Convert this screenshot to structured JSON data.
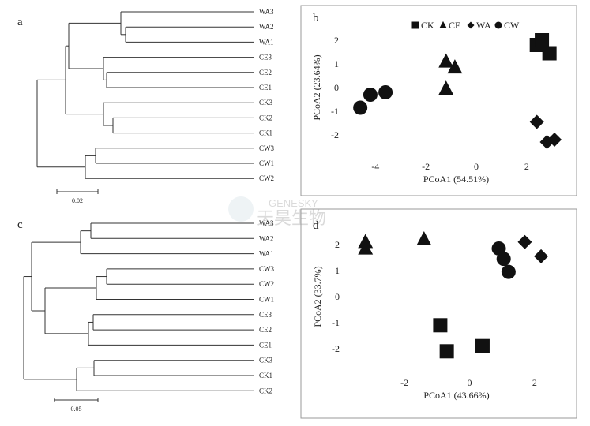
{
  "watermark": {
    "brand": "GENESKY",
    "chinese": "天昊生物"
  },
  "panels": {
    "a": {
      "label": "a",
      "scale": "0.02"
    },
    "b": {
      "label": "b"
    },
    "c": {
      "label": "c",
      "scale": "0.05"
    },
    "d": {
      "label": "d"
    }
  },
  "chart_data": [
    {
      "type": "dendrogram",
      "panel": "a",
      "leaves": [
        "WA3",
        "WA2",
        "WA1",
        "CE3",
        "CE2",
        "CE1",
        "CK3",
        "CK2",
        "CK1",
        "CW3",
        "CW1",
        "CW2"
      ],
      "scale_bar": "0.02"
    },
    {
      "type": "scatter",
      "panel": "b",
      "xlabel": "PCoA1 (54.51%)",
      "ylabel": "PCoA2 (23.64%)",
      "xlim": [
        -5.2,
        3.6
      ],
      "ylim": [
        -3,
        3
      ],
      "xticks": [
        -4,
        -2,
        0,
        2
      ],
      "yticks": [
        2,
        1,
        0,
        -1,
        -2
      ],
      "legend": {
        "position": "top"
      },
      "series": [
        {
          "name": "CK",
          "marker": "square",
          "points": [
            [
              2.4,
              1.8
            ],
            [
              2.6,
              2.0
            ],
            [
              2.9,
              1.45
            ]
          ]
        },
        {
          "name": "CE",
          "marker": "triangle",
          "points": [
            [
              -1.2,
              1.1
            ],
            [
              -0.85,
              0.85
            ],
            [
              -1.2,
              -0.05
            ]
          ]
        },
        {
          "name": "WA",
          "marker": "diamond",
          "points": [
            [
              2.4,
              -1.45
            ],
            [
              2.8,
              -2.3
            ],
            [
              3.1,
              -2.2
            ]
          ]
        },
        {
          "name": "CW",
          "marker": "circle",
          "points": [
            [
              -4.6,
              -0.85
            ],
            [
              -4.2,
              -0.3
            ],
            [
              -3.6,
              -0.2
            ]
          ]
        }
      ]
    },
    {
      "type": "dendrogram",
      "panel": "c",
      "leaves": [
        "WA3",
        "WA2",
        "WA1",
        "CW3",
        "CW2",
        "CW1",
        "CE3",
        "CE2",
        "CE1",
        "CK3",
        "CK1",
        "CK2"
      ],
      "scale_bar": "0.05"
    },
    {
      "type": "scatter",
      "panel": "d",
      "xlabel": "PCoA1 (43.66%)",
      "ylabel": "PCoA2 (33.7%)",
      "xlim": [
        -3.8,
        3.0
      ],
      "ylim": [
        -3,
        3
      ],
      "xticks": [
        -2,
        0,
        2
      ],
      "yticks": [
        2,
        1,
        0,
        -1,
        -2
      ],
      "series": [
        {
          "name": "CK",
          "marker": "square",
          "points": [
            [
              -0.9,
              -1.1
            ],
            [
              -0.7,
              -2.1
            ],
            [
              0.4,
              -1.9
            ]
          ]
        },
        {
          "name": "CE",
          "marker": "triangle",
          "points": [
            [
              -3.2,
              2.1
            ],
            [
              -3.2,
              1.85
            ],
            [
              -1.4,
              2.2
            ]
          ]
        },
        {
          "name": "WA",
          "marker": "diamond",
          "points": [
            [
              1.7,
              2.1
            ],
            [
              2.2,
              1.55
            ]
          ]
        },
        {
          "name": "CW",
          "marker": "circle",
          "points": [
            [
              0.9,
              1.85
            ],
            [
              1.05,
              1.45
            ],
            [
              1.2,
              0.95
            ]
          ]
        }
      ]
    }
  ]
}
